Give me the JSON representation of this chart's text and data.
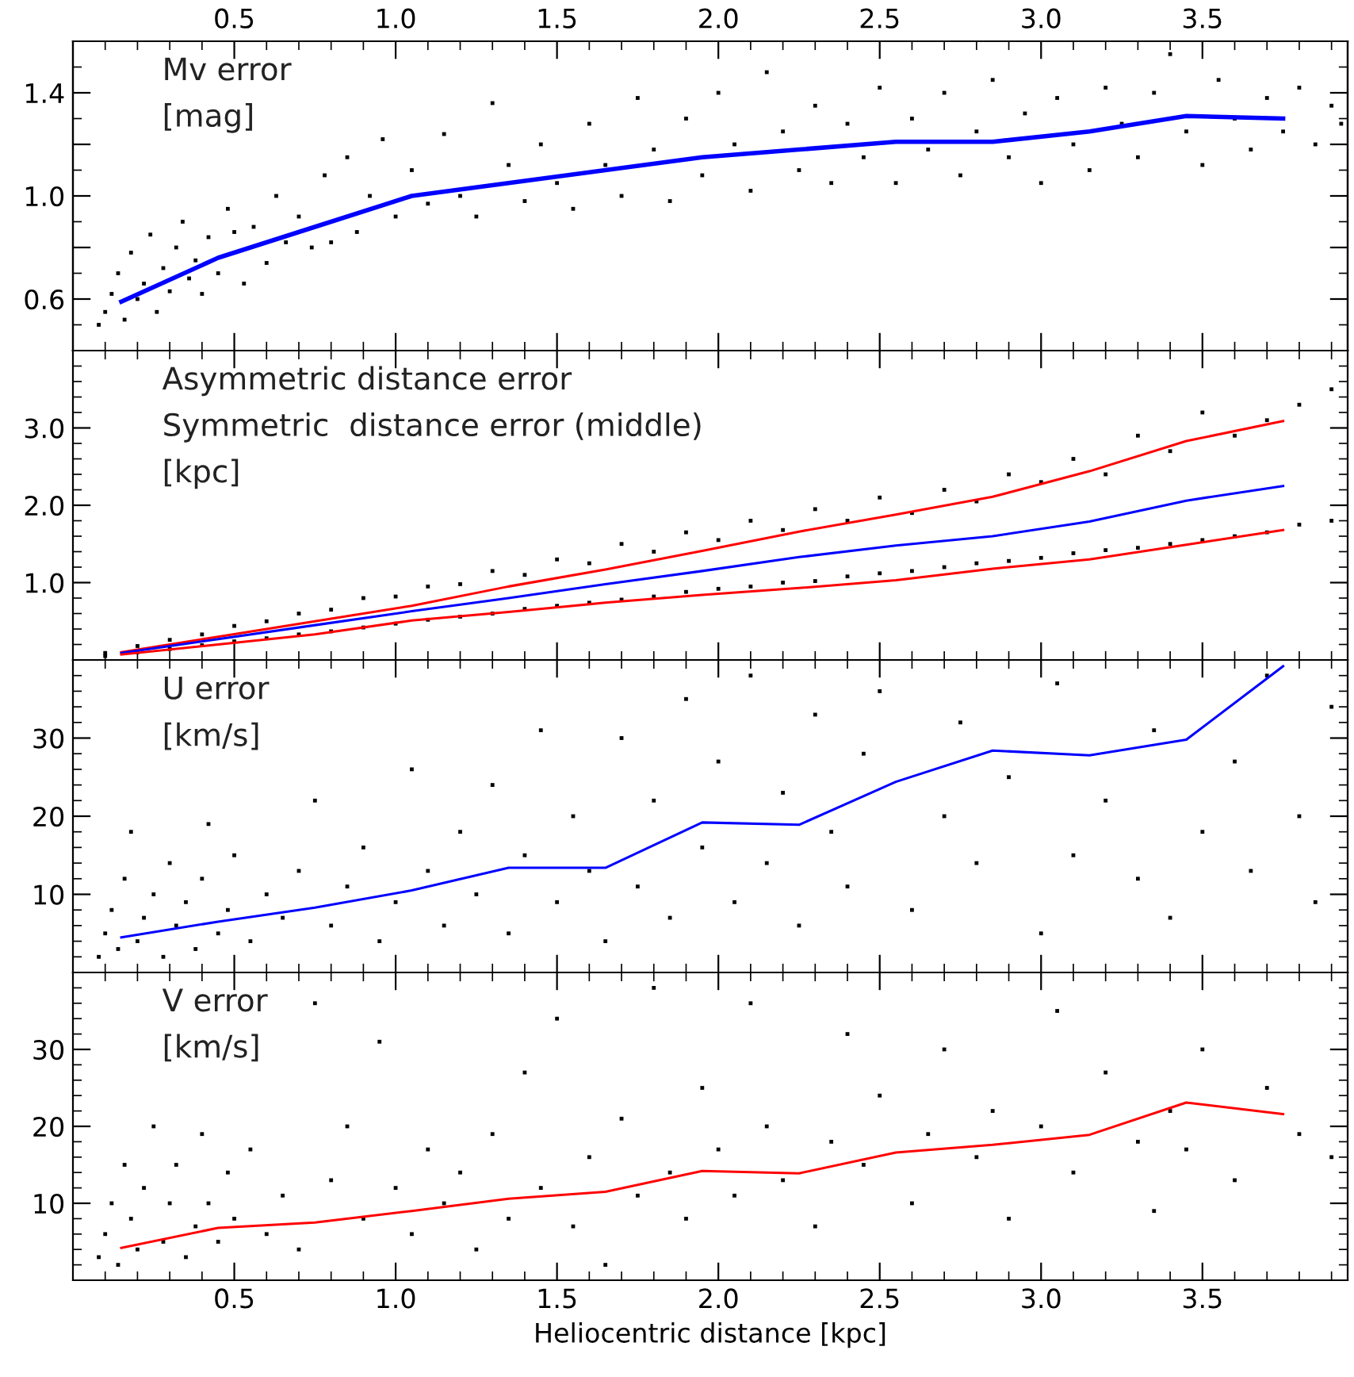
{
  "chart_data": [
    {
      "type": "scatter",
      "annotations": [
        "Mv error",
        "[mag]"
      ],
      "xlim": [
        0,
        3.95
      ],
      "xticks": [
        0.5,
        1,
        1.5,
        2,
        2.5,
        3,
        3.5
      ],
      "x2lim": [
        0,
        3.95
      ],
      "x2ticks": [
        0.5,
        {
          "value": 1,
          "label": "1.0"
        },
        1.5,
        {
          "value": 2,
          "label": "2.0"
        },
        2.5,
        {
          "value": 3,
          "label": "3.0"
        },
        3.5
      ],
      "ylim": [
        0.4,
        1.6
      ],
      "yticks": [
        0.6,
        {
          "value": 0.8,
          "label": null
        },
        {
          "value": 1,
          "label": "1.0"
        },
        {
          "value": 1.2,
          "label": null
        },
        1.4
      ],
      "tick_labels": "y",
      "series": [
        {
          "type": "scatter",
          "color": "#000000",
          "x": [
            0.08,
            0.1,
            0.12,
            0.14,
            0.16,
            0.18,
            0.2,
            0.22,
            0.24,
            0.26,
            0.28,
            0.3,
            0.32,
            0.34,
            0.36,
            0.38,
            0.4,
            0.42,
            0.45,
            0.48,
            0.5,
            0.53,
            0.56,
            0.6,
            0.63,
            0.66,
            0.7,
            0.74,
            0.78,
            0.8,
            0.85,
            0.88,
            0.92,
            0.96,
            1.0,
            1.05,
            1.1,
            1.15,
            1.2,
            1.25,
            1.3,
            1.35,
            1.4,
            1.45,
            1.5,
            1.55,
            1.6,
            1.65,
            1.7,
            1.75,
            1.8,
            1.85,
            1.9,
            1.95,
            2.0,
            2.05,
            2.1,
            2.15,
            2.2,
            2.25,
            2.3,
            2.35,
            2.4,
            2.45,
            2.5,
            2.55,
            2.6,
            2.65,
            2.7,
            2.75,
            2.8,
            2.85,
            2.9,
            2.95,
            3.0,
            3.05,
            3.1,
            3.15,
            3.2,
            3.25,
            3.3,
            3.35,
            3.4,
            3.45,
            3.5,
            3.55,
            3.6,
            3.65,
            3.7,
            3.75,
            3.8,
            3.85,
            3.9,
            3.93
          ],
          "values": [
            0.5,
            0.55,
            0.62,
            0.7,
            0.52,
            0.78,
            0.6,
            0.66,
            0.85,
            0.55,
            0.72,
            0.63,
            0.8,
            0.9,
            0.68,
            0.75,
            0.62,
            0.84,
            0.7,
            0.95,
            0.86,
            0.66,
            0.88,
            0.74,
            1.0,
            0.82,
            0.92,
            0.8,
            1.08,
            0.82,
            1.15,
            0.86,
            1.0,
            1.22,
            0.92,
            1.1,
            0.97,
            1.24,
            1.0,
            0.92,
            1.36,
            1.12,
            0.98,
            1.2,
            1.05,
            0.95,
            1.28,
            1.12,
            1.0,
            1.38,
            1.18,
            0.98,
            1.3,
            1.08,
            1.4,
            1.2,
            1.02,
            1.48,
            1.25,
            1.1,
            1.35,
            1.05,
            1.28,
            1.15,
            1.42,
            1.05,
            1.3,
            1.18,
            1.4,
            1.08,
            1.25,
            1.45,
            1.15,
            1.32,
            1.05,
            1.38,
            1.2,
            1.1,
            1.42,
            1.28,
            1.15,
            1.4,
            1.55,
            1.25,
            1.12,
            1.45,
            1.3,
            1.18,
            1.38,
            1.25,
            1.42,
            1.2,
            1.35,
            1.28
          ]
        },
        {
          "type": "line",
          "color": "#0000ff",
          "x": [
            0.15,
            0.45,
            0.75,
            1.05,
            1.35,
            1.65,
            1.95,
            2.25,
            2.55,
            2.85,
            3.15,
            3.45,
            3.75
          ],
          "values": [
            0.59,
            0.76,
            0.88,
            1.0,
            1.05,
            1.1,
            1.15,
            1.18,
            1.21,
            1.21,
            1.25,
            1.31,
            1.3
          ]
        }
      ]
    },
    {
      "type": "scatter",
      "annotations": [
        "Asymmetric distance error",
        "Symmetric  distance error (middle)",
        "[kpc]"
      ],
      "xlim": [
        0,
        3.95
      ],
      "xticks": [
        0.5,
        1,
        1.5,
        2,
        2.5,
        3,
        3.5
      ],
      "ylim": [
        0,
        4
      ],
      "yticks": [
        {
          "value": 1,
          "label": "1.0"
        },
        {
          "value": 2,
          "label": "2.0"
        },
        {
          "value": 3,
          "label": "3.0"
        }
      ],
      "tick_labels": "y",
      "series": [
        {
          "type": "scatter",
          "color": "#000000",
          "x": [
            0.1,
            0.2,
            0.3,
            0.4,
            0.5,
            0.6,
            0.7,
            0.8,
            0.9,
            1.0,
            1.1,
            1.2,
            1.3,
            1.4,
            1.5,
            1.6,
            1.7,
            1.8,
            1.9,
            2.0,
            2.1,
            2.2,
            2.3,
            2.4,
            2.5,
            2.6,
            2.7,
            2.8,
            2.9,
            3.0,
            3.1,
            3.2,
            3.3,
            3.4,
            3.5,
            3.6,
            3.7,
            3.8,
            3.9,
            0.1,
            0.2,
            0.3,
            0.4,
            0.5,
            0.6,
            0.7,
            0.8,
            0.9,
            1.0,
            1.1,
            1.2,
            1.3,
            1.4,
            1.5,
            1.6,
            1.7,
            1.8,
            1.9,
            2.0,
            2.1,
            2.2,
            2.3,
            2.4,
            2.5,
            2.6,
            2.7,
            2.8,
            2.9,
            3.0,
            3.1,
            3.2,
            3.3,
            3.4,
            3.5,
            3.6,
            3.7,
            3.8,
            3.9
          ],
          "values": [
            0.09,
            0.18,
            0.26,
            0.33,
            0.44,
            0.5,
            0.6,
            0.65,
            0.8,
            0.82,
            0.95,
            0.98,
            1.15,
            1.1,
            1.3,
            1.25,
            1.5,
            1.4,
            1.65,
            1.55,
            1.8,
            1.68,
            1.95,
            1.8,
            2.1,
            1.9,
            2.2,
            2.05,
            2.4,
            2.3,
            2.6,
            2.4,
            2.9,
            2.7,
            3.2,
            2.9,
            3.1,
            3.3,
            3.5,
            0.05,
            0.1,
            0.14,
            0.19,
            0.24,
            0.28,
            0.33,
            0.37,
            0.42,
            0.47,
            0.52,
            0.56,
            0.6,
            0.66,
            0.7,
            0.74,
            0.78,
            0.82,
            0.88,
            0.92,
            0.95,
            1.0,
            1.02,
            1.08,
            1.12,
            1.15,
            1.2,
            1.25,
            1.28,
            1.32,
            1.38,
            1.42,
            1.45,
            1.5,
            1.55,
            1.6,
            1.65,
            1.75,
            1.8
          ]
        },
        {
          "type": "line",
          "color": "#ff0000",
          "x": [
            0.15,
            0.45,
            0.75,
            1.05,
            1.35,
            1.65,
            1.95,
            2.25,
            2.55,
            2.85,
            3.15,
            3.45,
            3.75
          ],
          "values": [
            0.1,
            0.3,
            0.5,
            0.7,
            0.95,
            1.17,
            1.41,
            1.66,
            1.88,
            2.11,
            2.44,
            2.83,
            3.09
          ]
        },
        {
          "type": "line",
          "color": "#0000ff",
          "x": [
            0.15,
            0.45,
            0.75,
            1.05,
            1.35,
            1.65,
            1.95,
            2.25,
            2.55,
            2.85,
            3.15,
            3.45,
            3.75
          ],
          "values": [
            0.09,
            0.27,
            0.45,
            0.63,
            0.8,
            0.98,
            1.15,
            1.33,
            1.48,
            1.6,
            1.79,
            2.06,
            2.25
          ]
        },
        {
          "type": "line",
          "color": "#ff0000",
          "x": [
            0.15,
            0.45,
            0.75,
            1.05,
            1.35,
            1.65,
            1.95,
            2.25,
            2.55,
            2.85,
            3.15,
            3.45,
            3.75
          ],
          "values": [
            0.07,
            0.2,
            0.33,
            0.51,
            0.62,
            0.74,
            0.84,
            0.93,
            1.03,
            1.18,
            1.3,
            1.49,
            1.68
          ]
        }
      ]
    },
    {
      "type": "scatter",
      "annotations": [
        "U error",
        "[km/s]"
      ],
      "xlim": [
        0,
        3.95
      ],
      "xticks": [
        0.5,
        1,
        1.5,
        2,
        2.5,
        3,
        3.5
      ],
      "ylim": [
        0,
        40
      ],
      "yticks": [
        10,
        20,
        30
      ],
      "tick_labels": "y",
      "series": [
        {
          "type": "scatter",
          "color": "#000000",
          "x": [
            0.08,
            0.1,
            0.12,
            0.14,
            0.16,
            0.18,
            0.2,
            0.22,
            0.25,
            0.28,
            0.3,
            0.32,
            0.35,
            0.38,
            0.4,
            0.42,
            0.45,
            0.48,
            0.5,
            0.55,
            0.6,
            0.65,
            0.7,
            0.75,
            0.8,
            0.85,
            0.9,
            0.95,
            1.0,
            1.05,
            1.1,
            1.15,
            1.2,
            1.25,
            1.3,
            1.35,
            1.4,
            1.45,
            1.5,
            1.55,
            1.6,
            1.65,
            1.7,
            1.75,
            1.8,
            1.85,
            1.9,
            1.95,
            2.0,
            2.05,
            2.1,
            2.15,
            2.2,
            2.25,
            2.3,
            2.35,
            2.4,
            2.45,
            2.5,
            2.6,
            2.7,
            2.75,
            2.8,
            2.9,
            3.0,
            3.05,
            3.1,
            3.2,
            3.3,
            3.35,
            3.4,
            3.5,
            3.6,
            3.65,
            3.7,
            3.8,
            3.85,
            3.9
          ],
          "values": [
            2,
            5,
            8,
            3,
            12,
            18,
            4,
            7,
            10,
            2,
            14,
            6,
            9,
            3,
            12,
            19,
            5,
            8,
            15,
            4,
            10,
            7,
            13,
            22,
            6,
            11,
            16,
            4,
            9,
            26,
            13,
            6,
            18,
            10,
            24,
            5,
            15,
            31,
            9,
            20,
            13,
            4,
            30,
            11,
            22,
            7,
            35,
            16,
            27,
            9,
            38,
            14,
            23,
            6,
            33,
            18,
            11,
            28,
            36,
            8,
            20,
            32,
            14,
            25,
            5,
            37,
            15,
            22,
            12,
            31,
            7,
            18,
            27,
            13,
            38,
            20,
            9,
            34
          ]
        },
        {
          "type": "line",
          "color": "#0000ff",
          "x": [
            0.15,
            0.45,
            0.75,
            1.05,
            1.35,
            1.65,
            1.95,
            2.25,
            2.55,
            2.85,
            3.15,
            3.45,
            3.75
          ],
          "values": [
            4.5,
            6.5,
            8.3,
            10.5,
            13.4,
            13.4,
            19.2,
            18.9,
            24.4,
            28.4,
            27.8,
            29.8,
            39.2
          ]
        }
      ]
    },
    {
      "type": "scatter",
      "annotations": [
        "V error",
        "[km/s]"
      ],
      "xlabel": "Heliocentric distance [kpc]",
      "xlim": [
        0,
        3.95
      ],
      "xticks": [
        0.5,
        {
          "value": 1,
          "label": "1.0"
        },
        1.5,
        {
          "value": 2,
          "label": "2.0"
        },
        2.5,
        {
          "value": 3,
          "label": "3.0"
        },
        3.5
      ],
      "ylim": [
        0,
        40
      ],
      "yticks": [
        10,
        20,
        30
      ],
      "series": [
        {
          "type": "scatter",
          "color": "#000000",
          "x": [
            0.08,
            0.1,
            0.12,
            0.14,
            0.16,
            0.18,
            0.2,
            0.22,
            0.25,
            0.28,
            0.3,
            0.32,
            0.35,
            0.38,
            0.4,
            0.42,
            0.45,
            0.48,
            0.5,
            0.55,
            0.6,
            0.65,
            0.7,
            0.75,
            0.8,
            0.85,
            0.9,
            0.95,
            1.0,
            1.05,
            1.1,
            1.15,
            1.2,
            1.25,
            1.3,
            1.35,
            1.4,
            1.45,
            1.5,
            1.55,
            1.6,
            1.65,
            1.7,
            1.75,
            1.8,
            1.85,
            1.9,
            1.95,
            2.0,
            2.05,
            2.1,
            2.15,
            2.2,
            2.3,
            2.35,
            2.4,
            2.45,
            2.5,
            2.6,
            2.65,
            2.7,
            2.8,
            2.85,
            2.9,
            3.0,
            3.05,
            3.1,
            3.2,
            3.3,
            3.35,
            3.4,
            3.45,
            3.5,
            3.6,
            3.7,
            3.8,
            3.9
          ],
          "values": [
            3,
            6,
            10,
            2,
            15,
            8,
            4,
            12,
            20,
            5,
            10,
            15,
            3,
            7,
            19,
            10,
            5,
            14,
            8,
            17,
            6,
            11,
            4,
            36,
            13,
            20,
            8,
            31,
            12,
            6,
            17,
            10,
            14,
            4,
            19,
            8,
            27,
            12,
            34,
            7,
            16,
            2,
            21,
            11,
            38,
            14,
            8,
            25,
            17,
            11,
            36,
            20,
            13,
            7,
            18,
            32,
            15,
            24,
            10,
            19,
            30,
            16,
            22,
            8,
            20,
            35,
            14,
            27,
            18,
            9,
            22,
            17,
            30,
            13,
            25,
            19,
            16
          ]
        },
        {
          "type": "line",
          "color": "#ff0000",
          "x": [
            0.15,
            0.45,
            0.75,
            1.05,
            1.35,
            1.65,
            1.95,
            2.25,
            2.55,
            2.85,
            3.15,
            3.45,
            3.75
          ],
          "values": [
            4.2,
            6.8,
            7.5,
            9.0,
            10.6,
            11.5,
            14.2,
            13.9,
            16.6,
            17.6,
            18.9,
            23.1,
            21.6
          ]
        }
      ]
    }
  ]
}
